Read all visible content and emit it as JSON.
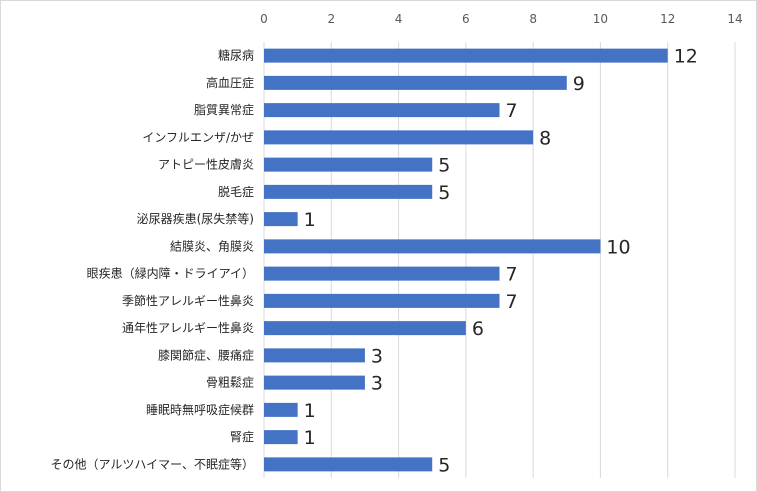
{
  "chart_data": {
    "type": "bar",
    "orientation": "horizontal",
    "title": "",
    "xlabel": "",
    "ylabel": "",
    "xlim": [
      0,
      14
    ],
    "x_ticks": [
      "0",
      "2",
      "4",
      "6",
      "8",
      "10",
      "12",
      "14"
    ],
    "x_axis_position": "top",
    "grid": true,
    "legend": "none",
    "bar_color": "#4472c4",
    "categories": [
      "糖尿病",
      "高血圧症",
      "脂質異常症",
      "インフルエンザ/かぜ",
      "アトピー性皮膚炎",
      "脱毛症",
      "泌尿器疾患(尿失禁等)",
      "結膜炎、角膜炎",
      "眼疾患（緑内障・ドライアイ）",
      "季節性アレルギー性鼻炎",
      "通年性アレルギー性鼻炎",
      "膝関節症、腰痛症",
      "骨粗鬆症",
      "睡眠時無呼吸症候群",
      "腎症",
      "その他（アルツハイマー、不眠症等）"
    ],
    "values": [
      12,
      9,
      7,
      8,
      5,
      5,
      1,
      10,
      7,
      7,
      6,
      3,
      3,
      1,
      1,
      5
    ],
    "data_labels": [
      "12",
      "9",
      "7",
      "8",
      "5",
      "5",
      "1",
      "10",
      "7",
      "7",
      "6",
      "3",
      "3",
      "1",
      "1",
      "5"
    ]
  }
}
